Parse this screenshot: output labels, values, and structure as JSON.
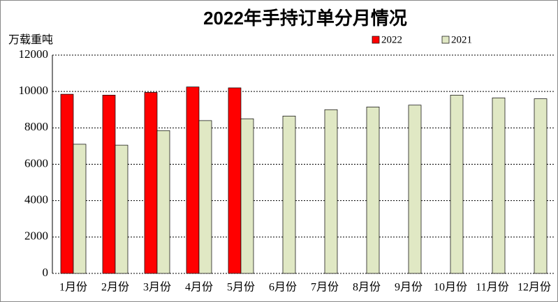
{
  "chart_data": {
    "type": "bar",
    "title": "2022年手持订单分月情况",
    "y_label": "万载重吨",
    "categories": [
      "1月份",
      "2月份",
      "3月份",
      "4月份",
      "5月份",
      "6月份",
      "7月份",
      "8月份",
      "9月份",
      "10月份",
      "11月份",
      "12月份"
    ],
    "series": [
      {
        "name": "2022",
        "color": "#ff0000",
        "values": [
          9850,
          9800,
          9950,
          10250,
          10200,
          null,
          null,
          null,
          null,
          null,
          null,
          null
        ]
      },
      {
        "name": "2021",
        "color": "#e0e8c4",
        "values": [
          7100,
          7050,
          7850,
          8400,
          8500,
          8650,
          9000,
          9150,
          9250,
          9800,
          9650,
          9600
        ]
      }
    ],
    "ylim": [
      0,
      12000
    ],
    "yticks": [
      0,
      2000,
      4000,
      6000,
      8000,
      10000,
      12000
    ],
    "grid": true
  }
}
